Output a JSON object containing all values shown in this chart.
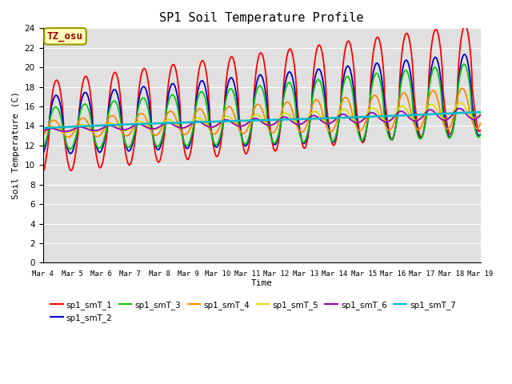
{
  "title": "SP1 Soil Temperature Profile",
  "xlabel": "Time",
  "ylabel": "Soil Temperature (C)",
  "ylim": [
    0,
    24
  ],
  "annotation": "TZ_osu",
  "bg_color": "#e0e0e0",
  "series_colors": {
    "sp1_smT_1": "#ff0000",
    "sp1_smT_2": "#0000cc",
    "sp1_smT_3": "#00cc00",
    "sp1_smT_4": "#ff8800",
    "sp1_smT_5": "#dddd00",
    "sp1_smT_6": "#9900bb",
    "sp1_smT_7": "#00bbcc"
  },
  "series_lw": {
    "sp1_smT_1": 1.3,
    "sp1_smT_2": 1.3,
    "sp1_smT_3": 1.3,
    "sp1_smT_4": 1.3,
    "sp1_smT_5": 1.3,
    "sp1_smT_6": 1.3,
    "sp1_smT_7": 1.8
  },
  "xtick_labels": [
    "Mar 4",
    "Mar 5",
    "Mar 6",
    "Mar 7",
    "Mar 8",
    "Mar 9",
    "Mar 10",
    "Mar 11",
    "Mar 12",
    "Mar 13",
    "Mar 14",
    "Mar 15",
    "Mar 16",
    "Mar 17",
    "Mar 18",
    "Mar 19"
  ],
  "grid_color": "#ffffff",
  "legend_items": [
    "sp1_smT_1",
    "sp1_smT_2",
    "sp1_smT_3",
    "sp1_smT_4",
    "sp1_smT_5",
    "sp1_smT_6",
    "sp1_smT_7"
  ]
}
